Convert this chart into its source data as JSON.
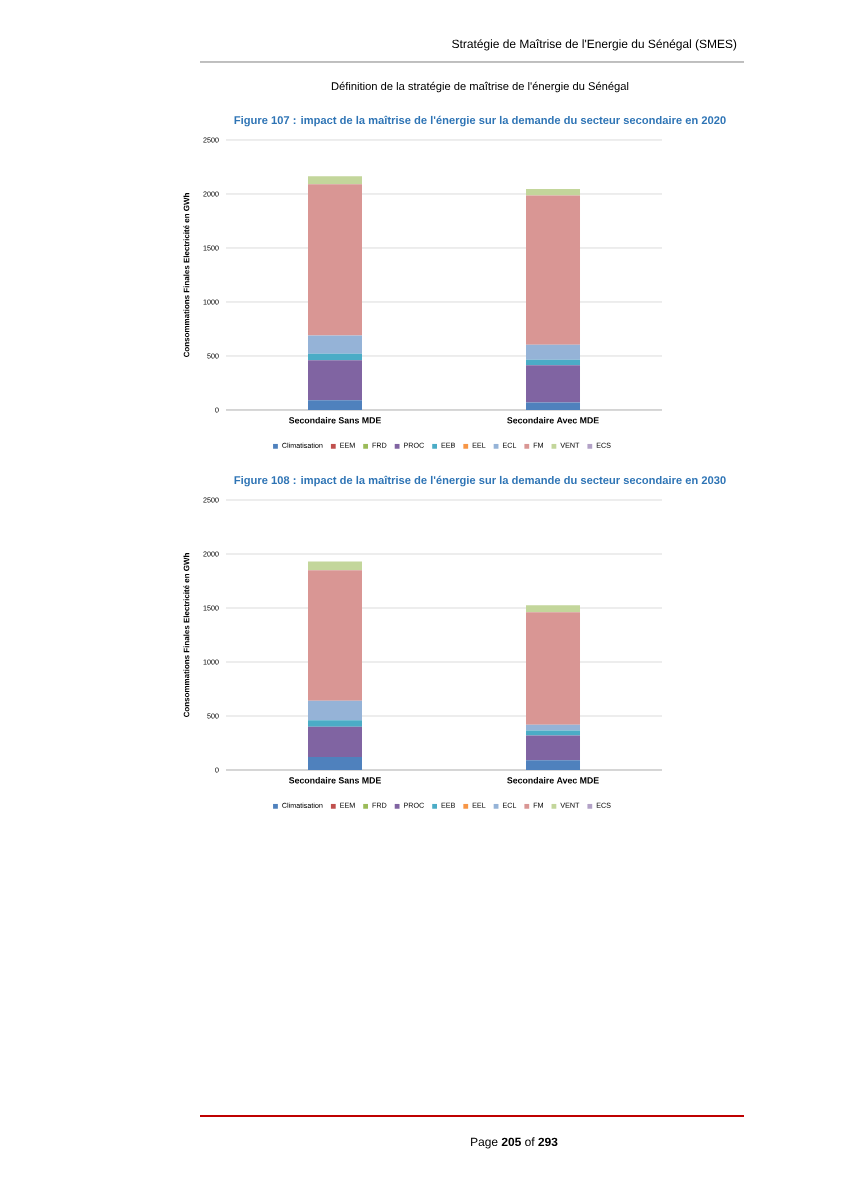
{
  "chart_data": [
    {
      "type": "bar",
      "stacked": true,
      "title": "Figure 107 : impact de la maîtrise de l'énergie sur la demande du secteur secondaire en 2020",
      "annotations": [
        "Stratégie de Maîtrise de l'Energie du Sénégal (SMES)",
        "Définition de la stratégie de maîtrise de l'énergie du Sénégal"
      ],
      "ylabel": "Consommations Finales Electricité en GWh",
      "categories": [
        "Secondaire Sans MDE",
        "Secondaire Avec MDE"
      ],
      "ylim": [
        0,
        2500
      ],
      "yticks": [
        0,
        500,
        1000,
        1500,
        2000,
        2500
      ],
      "grid": "y",
      "legend": "bottom",
      "series": [
        {
          "name": "Climatisation",
          "color": "#4f81bd",
          "values": [
            90,
            70
          ]
        },
        {
          "name": "EEM",
          "color": "#c0504d",
          "values": [
            0,
            0
          ]
        },
        {
          "name": "FRD",
          "color": "#9bbb59",
          "values": [
            0,
            0
          ]
        },
        {
          "name": "PROC",
          "color": "#8064a2",
          "values": [
            370,
            345
          ]
        },
        {
          "name": "EEB",
          "color": "#4bacc6",
          "values": [
            60,
            50
          ]
        },
        {
          "name": "EEL",
          "color": "#f79646",
          "values": [
            0,
            0
          ]
        },
        {
          "name": "ECL",
          "color": "#95b3d7",
          "values": [
            170,
            140
          ]
        },
        {
          "name": "FM",
          "color": "#d99694",
          "values": [
            1400,
            1380
          ]
        },
        {
          "name": "VENT",
          "color": "#c3d69b",
          "values": [
            75,
            60
          ]
        },
        {
          "name": "ECS",
          "color": "#b3a2c7",
          "values": [
            0,
            0
          ]
        }
      ]
    },
    {
      "type": "bar",
      "stacked": true,
      "title": "Figure 108 : impact de la maîtrise de l'énergie sur la demande du secteur secondaire en 2030",
      "annotations": [
        "Page **205** of **293**"
      ],
      "ylabel": "Consommations Finales Electricité en GWh",
      "categories": [
        "Secondaire Sans MDE",
        "Secondaire Avec MDE"
      ],
      "ylim": [
        0,
        2500
      ],
      "yticks": [
        0,
        500,
        1000,
        1500,
        2000,
        2500
      ],
      "grid": "y",
      "legend": "bottom",
      "series": [
        {
          "name": "Climatisation",
          "color": "#4f81bd",
          "values": [
            120,
            90
          ]
        },
        {
          "name": "EEM",
          "color": "#c0504d",
          "values": [
            0,
            0
          ]
        },
        {
          "name": "FRD",
          "color": "#9bbb59",
          "values": [
            0,
            0
          ]
        },
        {
          "name": "PROC",
          "color": "#8064a2",
          "values": [
            280,
            230
          ]
        },
        {
          "name": "EEB",
          "color": "#4bacc6",
          "values": [
            60,
            45
          ]
        },
        {
          "name": "EEL",
          "color": "#f79646",
          "values": [
            0,
            0
          ]
        },
        {
          "name": "ECL",
          "color": "#95b3d7",
          "values": [
            180,
            55
          ]
        },
        {
          "name": "FM",
          "color": "#d99694",
          "values": [
            1210,
            1040
          ]
        },
        {
          "name": "VENT",
          "color": "#c3d69b",
          "values": [
            80,
            65
          ]
        },
        {
          "name": "ECS",
          "color": "#b3a2c7",
          "values": [
            0,
            0
          ]
        }
      ]
    }
  ]
}
